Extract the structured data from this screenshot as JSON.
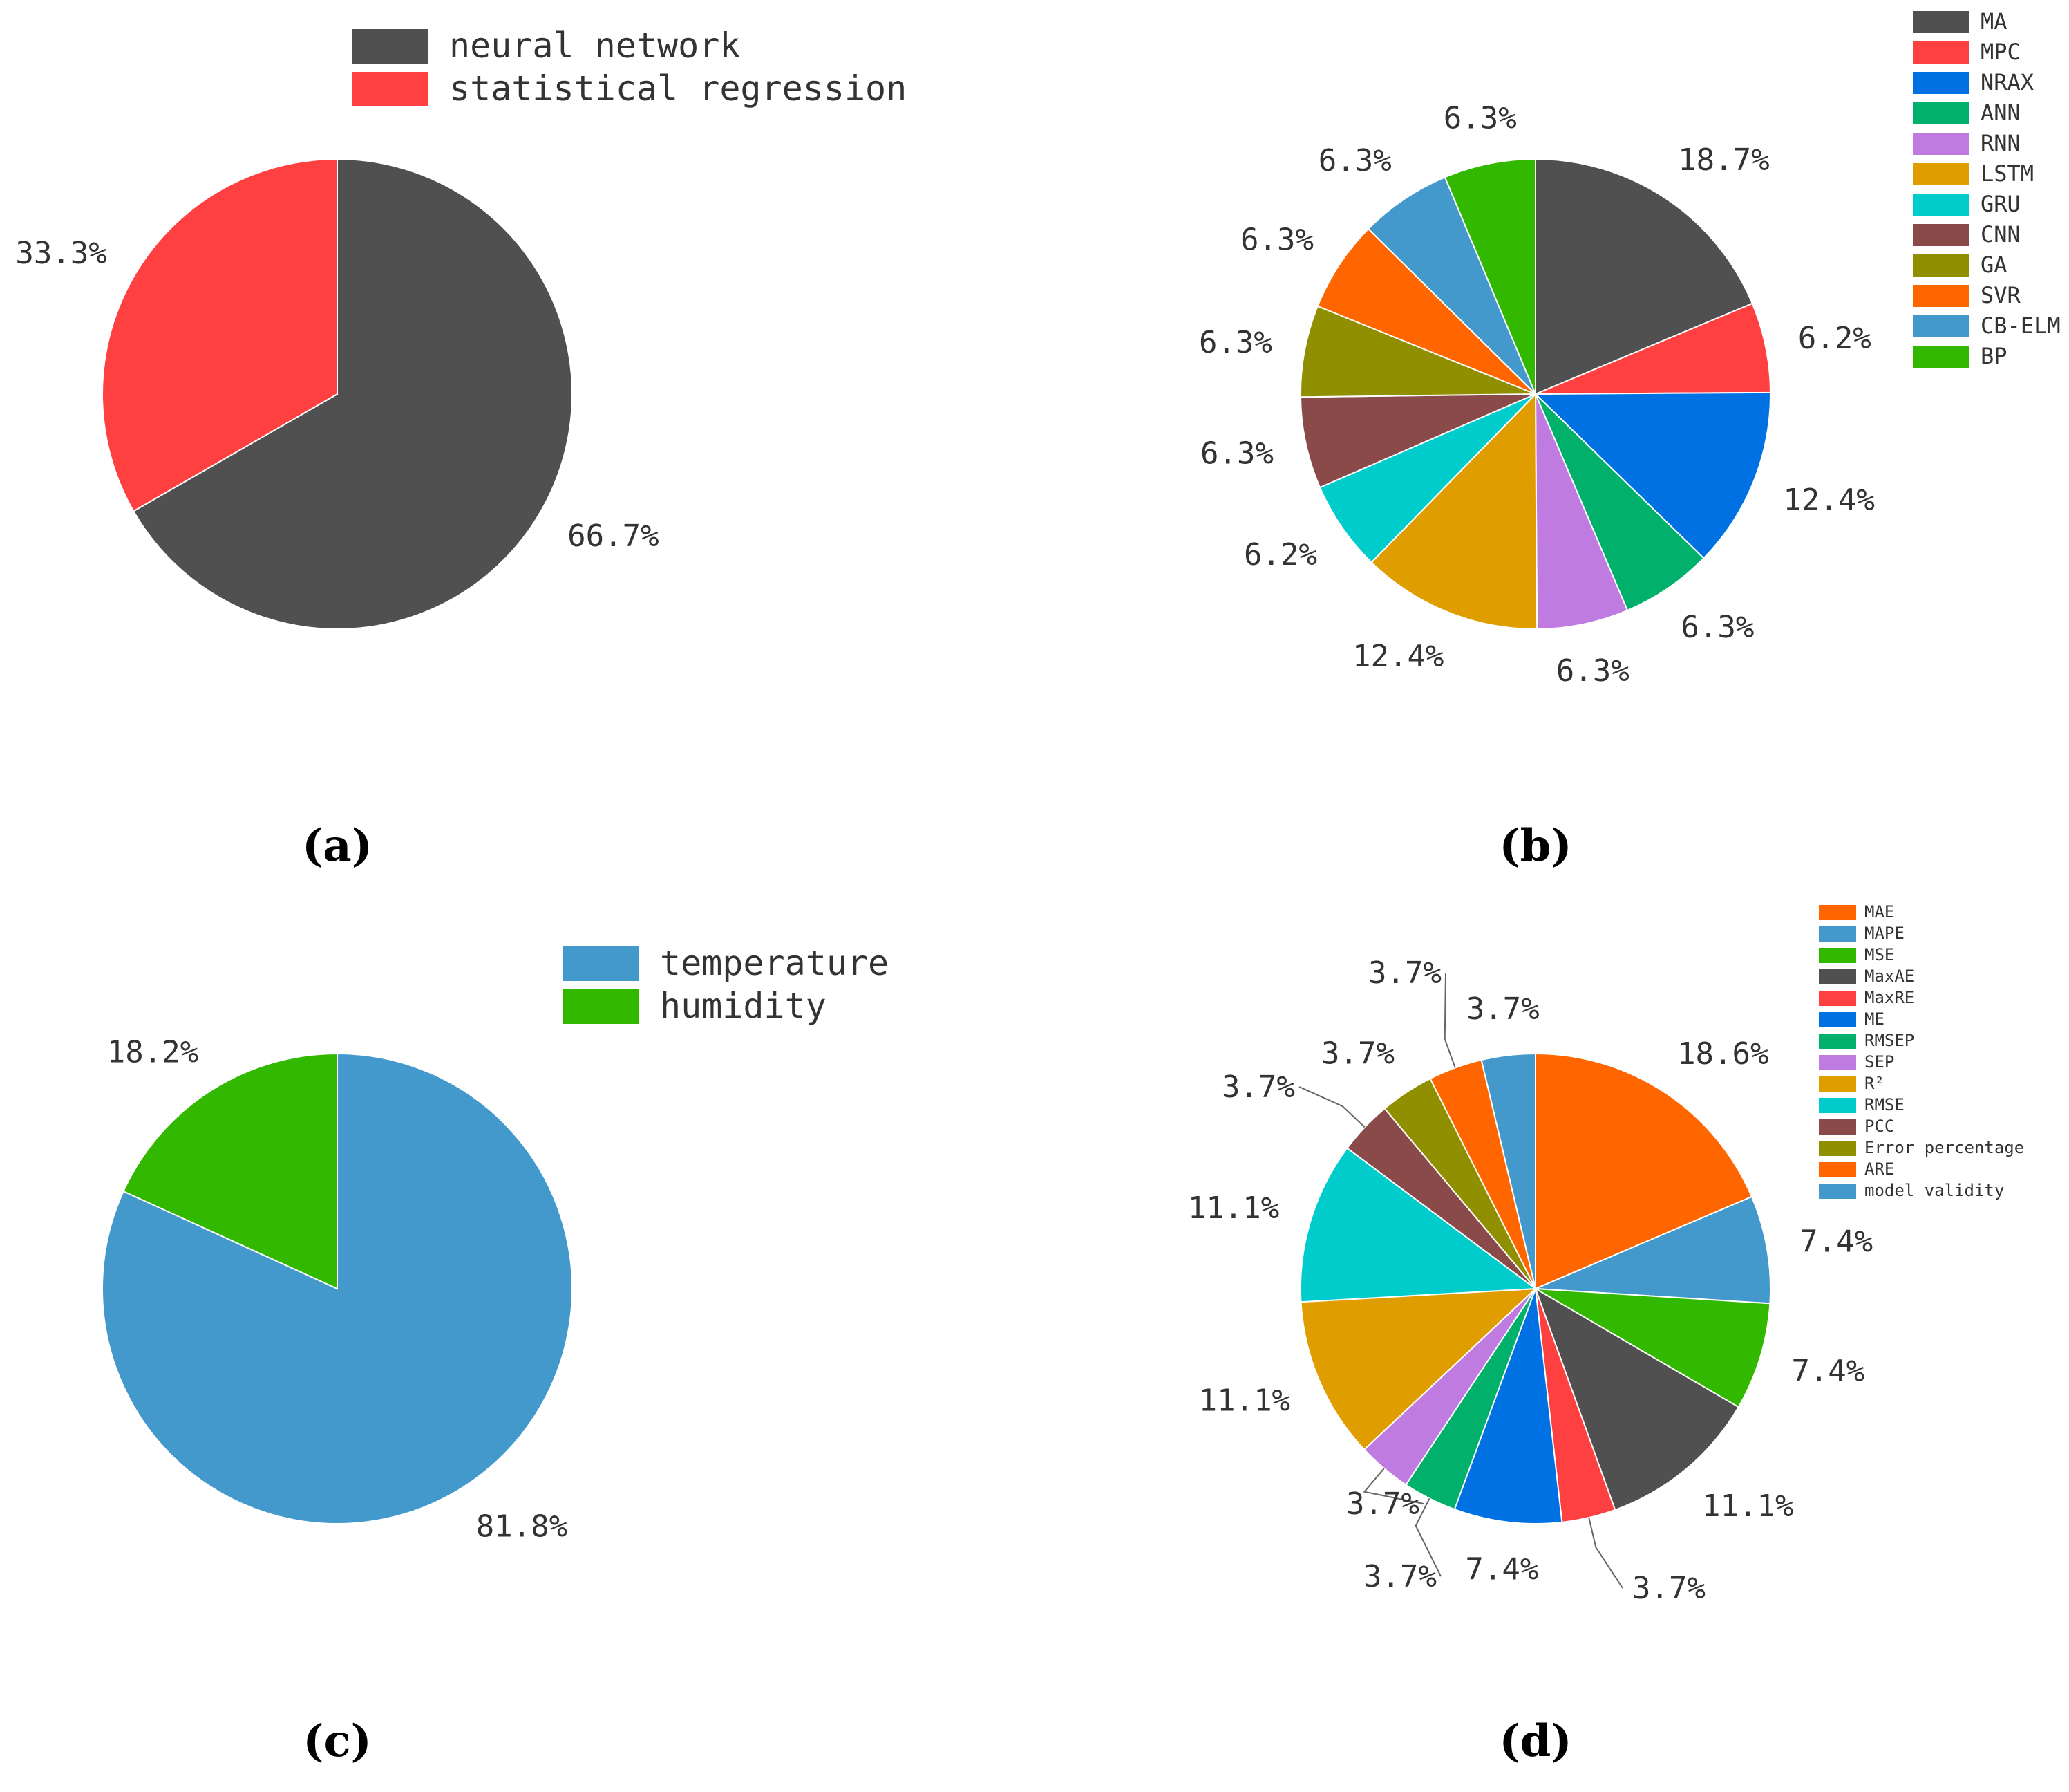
{
  "chart_data": [
    {
      "type": "pie",
      "panel_label": "(a)",
      "legend_placement": "top-right",
      "labels": [
        "neural network",
        "statistical regression"
      ],
      "values": [
        66.7,
        33.3
      ],
      "pct_labels": [
        "66.7%",
        "33.3%"
      ],
      "colors": [
        "#505050",
        "#ff4040"
      ]
    },
    {
      "type": "pie",
      "panel_label": "(b)",
      "legend_placement": "top-right",
      "labels": [
        "MA",
        "MPC",
        "NRAX",
        "ANN",
        "RNN",
        "LSTM",
        "GRU",
        "CNN",
        "GA",
        "SVR",
        "CB-ELM",
        "BP"
      ],
      "values": [
        18.7,
        6.2,
        12.4,
        6.3,
        6.3,
        12.4,
        6.2,
        6.3,
        6.3,
        6.3,
        6.3,
        6.3
      ],
      "pct_labels": [
        "18.7%",
        "6.2%",
        "12.4%",
        "6.3%",
        "6.3%",
        "12.4%",
        "6.2%",
        "6.3%",
        "6.3%",
        "6.3%",
        "6.3%",
        "6.3%"
      ],
      "colors": [
        "#505050",
        "#ff4040",
        "#0071e3",
        "#00b06b",
        "#c07be0",
        "#e09d00",
        "#00cccc",
        "#8b4a4a",
        "#8f8f00",
        "#ff6600",
        "#4499cc",
        "#33b800"
      ]
    },
    {
      "type": "pie",
      "panel_label": "(c)",
      "legend_placement": "top-right",
      "labels": [
        "temperature",
        "humidity"
      ],
      "values": [
        81.8,
        18.2
      ],
      "pct_labels": [
        "81.8%",
        "18.2%"
      ],
      "colors": [
        "#4499cc",
        "#33b800"
      ]
    },
    {
      "type": "pie",
      "panel_label": "(d)",
      "legend_placement": "top-right",
      "labels": [
        "MAE",
        "MAPE",
        "MSE",
        "MaxAE",
        "MaxRE",
        "ME",
        "RMSEP",
        "SEP",
        "R²",
        "RMSE",
        "PCC",
        "Error percentage",
        "ARE",
        "model validity"
      ],
      "values": [
        18.6,
        7.4,
        7.4,
        11.1,
        3.7,
        7.4,
        3.7,
        3.7,
        11.1,
        11.1,
        3.7,
        3.7,
        3.7,
        3.7
      ],
      "pct_labels": [
        "18.6%",
        "7.4%",
        "7.4%",
        "11.1%",
        "3.7%",
        "7.4%",
        "3.7%",
        "3.7%",
        "11.1%",
        "11.1%",
        "3.7%",
        "3.7%",
        "3.7%",
        "3.7%"
      ],
      "colors": [
        "#ff6600",
        "#4499cc",
        "#33b800",
        "#505050",
        "#ff4040",
        "#0071e3",
        "#00b06b",
        "#c07be0",
        "#e09d00",
        "#00cccc",
        "#8b4a4a",
        "#8f8f00",
        "#ff6600",
        "#4499cc"
      ]
    }
  ]
}
